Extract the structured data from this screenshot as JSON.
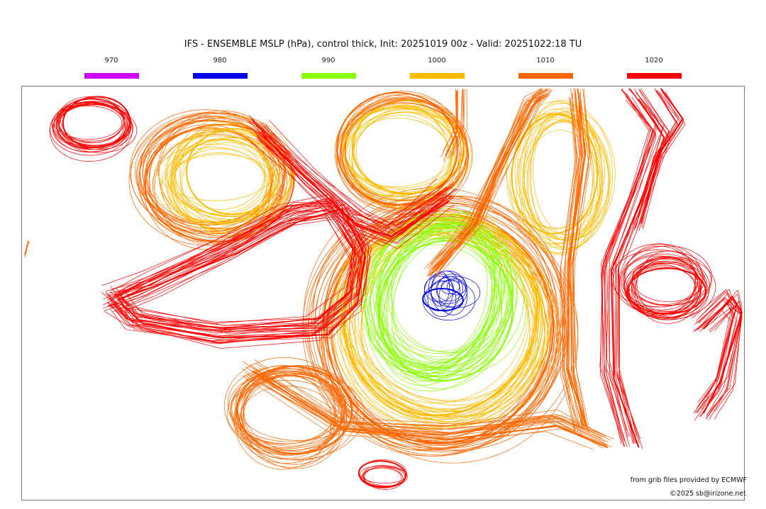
{
  "title": "IFS - ENSEMBLE MSLP (hPa), control thick, Init: 20251019 00z - Valid: 20251022:18 TU",
  "legend": [
    {
      "label": "970",
      "color": "#cc00ff"
    },
    {
      "label": "980",
      "color": "#0000ee"
    },
    {
      "label": "990",
      "color": "#88ff00"
    },
    {
      "label": "1000",
      "color": "#ffbb00"
    },
    {
      "label": "1010",
      "color": "#ff6600"
    },
    {
      "label": "1020",
      "color": "#ff0000"
    }
  ],
  "credit": "from grib files provided by ECMWF",
  "copyright": "©2025 sb@irizone.net"
}
